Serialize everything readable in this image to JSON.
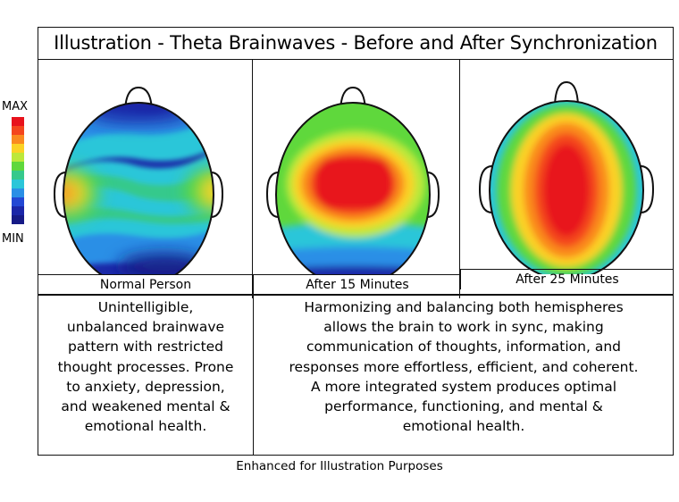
{
  "title": "Illustration - Theta Brainwaves - Before and After Synchronization",
  "legend": {
    "max_label": "MAX",
    "min_label": "MIN",
    "colors": [
      "#e8121c",
      "#f4461d",
      "#fa8a1f",
      "#fbd225",
      "#bde83a",
      "#5fd83c",
      "#36c98c",
      "#2bc6d9",
      "#2a8fe6",
      "#2348d4",
      "#1b26a8",
      "#161a86"
    ]
  },
  "panels": [
    {
      "caption": "Normal Person"
    },
    {
      "caption": "After 15 Minutes"
    },
    {
      "caption": "After 25 Minutes"
    }
  ],
  "descriptions": {
    "left": [
      "Unintelligible,",
      "unbalanced brainwave",
      "pattern with restricted",
      "thought processes. Prone",
      "to anxiety, depression,",
      "and weakened mental &",
      "emotional health."
    ],
    "right": [
      "Harmonizing and balancing both hemispheres",
      "allows the brain to work in sync, making",
      "communication of thoughts, information, and",
      "responses more effortless, efficient, and coherent.",
      "A more integrated system produces optimal",
      "performance, functioning, and mental &",
      "emotional health."
    ]
  },
  "footer": "Enhanced for Illustration Purposes"
}
